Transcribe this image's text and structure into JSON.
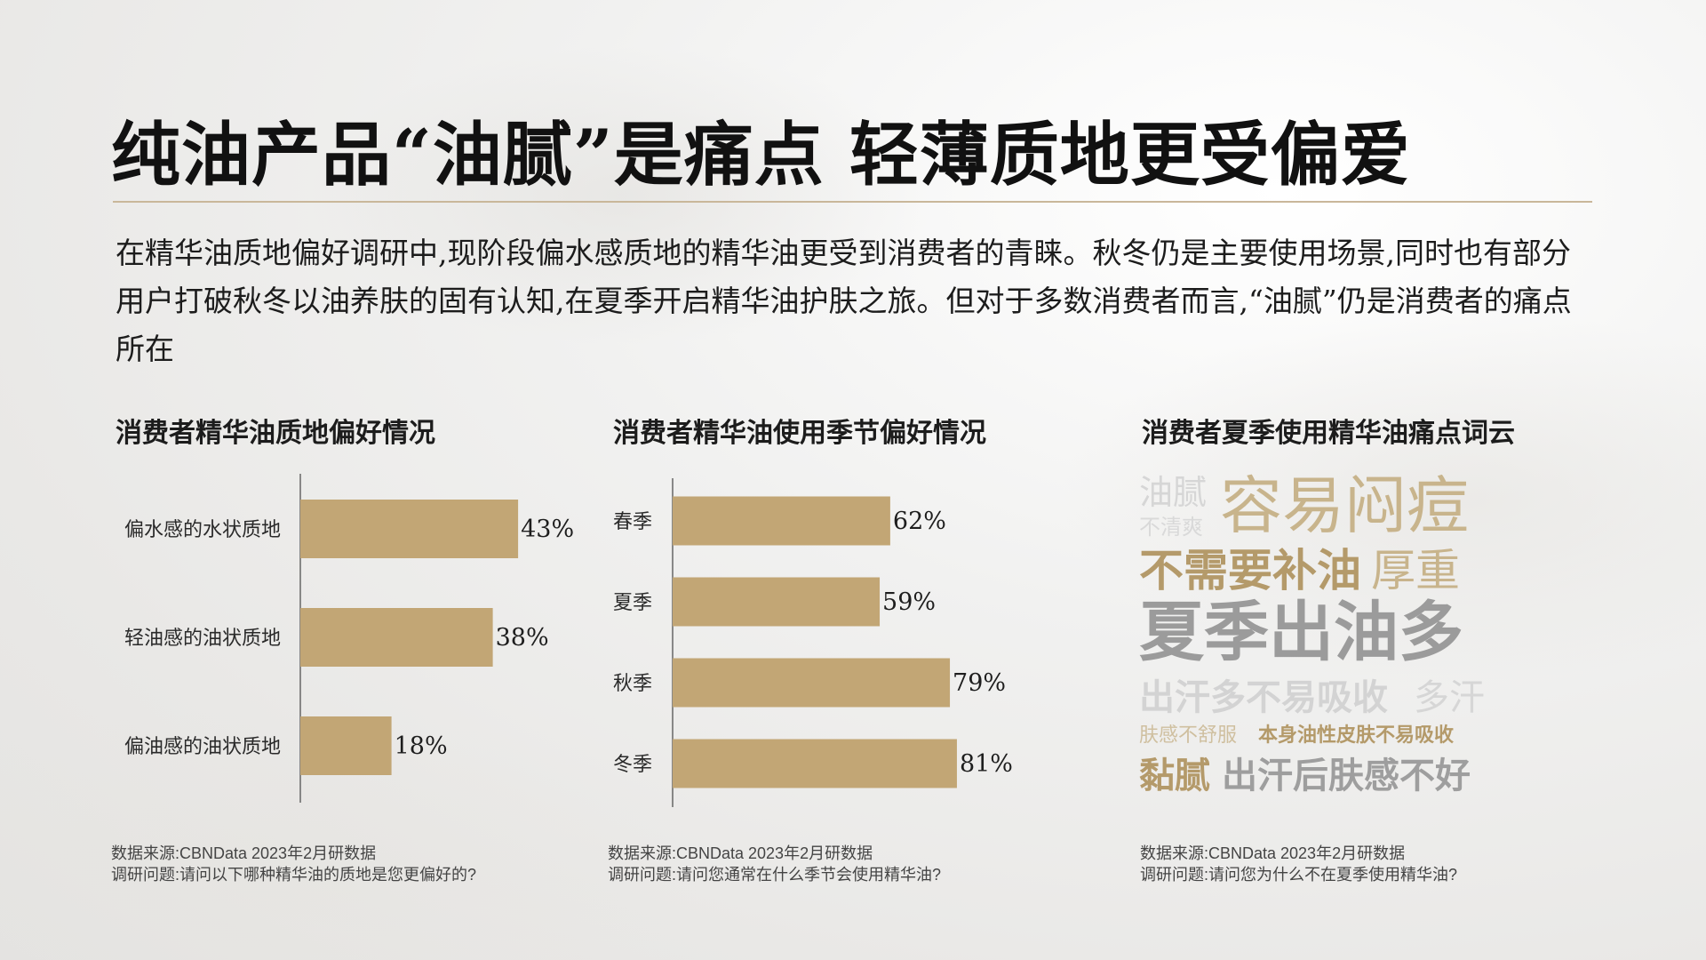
{
  "header": {
    "title": "纯油产品“油腻”是痛点 轻薄质地更受偏爱",
    "intro": "在精华油质地偏好调研中,现阶段偏水感质地的精华油更受到消费者的青睐。秋冬仍是主要使用场景,同时也有部分用户打破秋冬以油养肤的固有认知,在夏季开启精华油护肤之旅。但对于多数消费者而言,“油腻”仍是消费者的痛点所在"
  },
  "colors": {
    "bar": "#c2a675",
    "axis": "#666666",
    "gold_text": "#b59a6b",
    "gray_text": "#9a9a9a",
    "light_text": "#cfcfcf"
  },
  "chart_data": [
    {
      "type": "bar",
      "orientation": "horizontal",
      "title": "消费者精华油质地偏好情况",
      "categories": [
        "偏水感的水状质地",
        "轻油感的油状质地",
        "偏油感的油状质地"
      ],
      "values": [
        43,
        38,
        18
      ],
      "value_labels": [
        "43%",
        "38%",
        "18%"
      ],
      "unit": "%",
      "xlim": [
        0,
        100
      ],
      "grid": false,
      "source": "数据来源:CBNData 2023年2月研数据",
      "question": "调研问题:请问以下哪种精华油的质地是您更偏好的?"
    },
    {
      "type": "bar",
      "orientation": "horizontal",
      "title": "消费者精华油使用季节偏好情况",
      "categories": [
        "春季",
        "夏季",
        "秋季",
        "冬季"
      ],
      "values": [
        62,
        59,
        79,
        81
      ],
      "value_labels": [
        "62%",
        "59%",
        "79%",
        "81%"
      ],
      "unit": "%",
      "xlim": [
        0,
        100
      ],
      "grid": false,
      "source": "数据来源:CBNData 2023年2月研数据",
      "question": "调研问题:请问您通常在什么季节会使用精华油?"
    }
  ],
  "wordcloud": {
    "title": "消费者夏季使用精华油痛点词云",
    "words": [
      {
        "text": "油腻",
        "color": "#d6d6d6",
        "weight": "normal"
      },
      {
        "text": "不清爽",
        "color": "#d9d9d9",
        "weight": "normal"
      },
      {
        "text": "容易闷痘",
        "color": "#c8b48c",
        "weight": "normal"
      },
      {
        "text": "不需要补油",
        "color": "#b49a6a",
        "weight": "bold"
      },
      {
        "text": "厚重",
        "color": "#c8b48c",
        "weight": "normal"
      },
      {
        "text": "夏季出油多",
        "color": "#9b9b9b",
        "weight": "bold"
      },
      {
        "text": "出汗多不易吸收",
        "color": "#d3d3d3",
        "weight": "bold"
      },
      {
        "text": "多汗",
        "color": "#d6d6d6",
        "weight": "normal"
      },
      {
        "text": "肤感不舒服",
        "color": "#cfbf9f",
        "weight": "normal"
      },
      {
        "text": "本身油性皮肤不易吸收",
        "color": "#b49a6a",
        "weight": "bold"
      },
      {
        "text": "黏腻",
        "color": "#b49a6a",
        "weight": "bold"
      },
      {
        "text": "出汗后肤感不好",
        "color": "#9e9e9e",
        "weight": "bold"
      }
    ],
    "source": "数据来源:CBNData 2023年2月研数据",
    "question": "调研问题:请问您为什么不在夏季使用精华油?"
  }
}
